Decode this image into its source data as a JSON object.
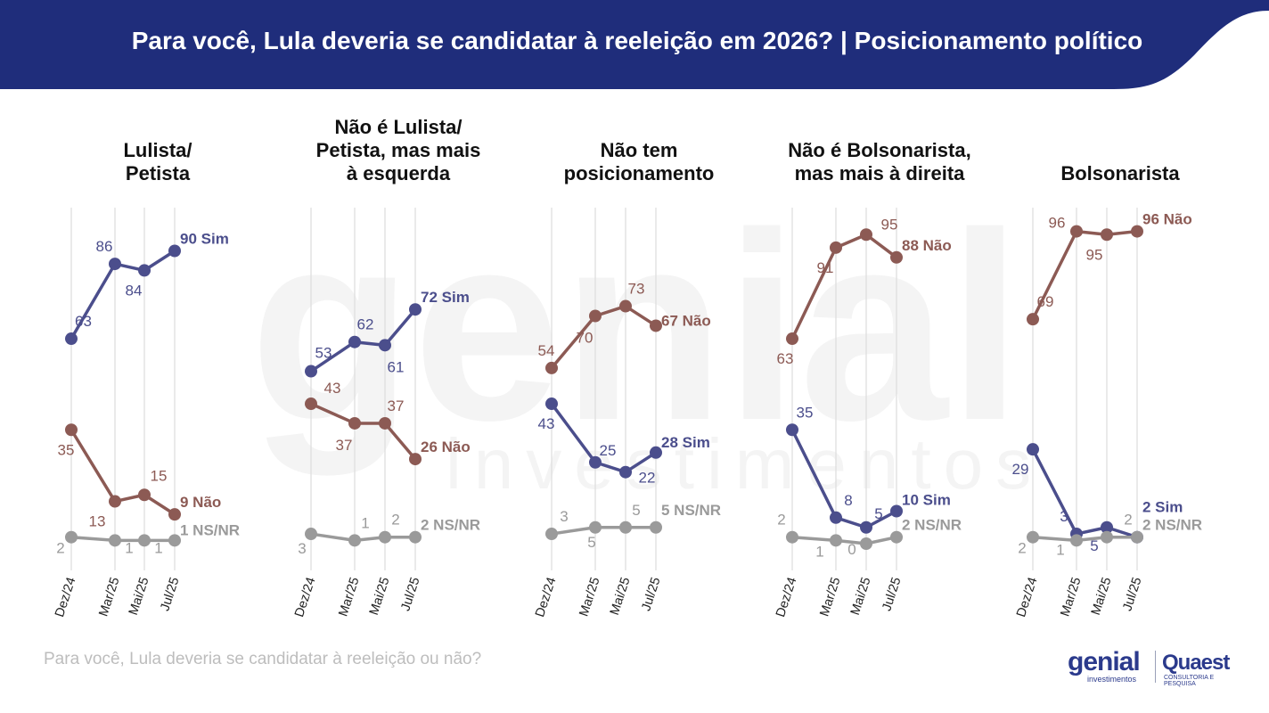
{
  "header": {
    "title": "Para você, Lula deveria se candidatar à reeleição em 2026? | Posicionamento político",
    "bg_color": "#1f2d7b"
  },
  "footnote": "Para você, Lula deveria se candidatar à reeleição ou não?",
  "logos": {
    "genial": "genial",
    "genial_sub": "investimentos",
    "quaest": "Quaest",
    "quaest_sub": "CONSULTORIA E PESQUISA"
  },
  "watermark": {
    "word": "genial",
    "sub": "investimentos"
  },
  "colors": {
    "sim": "#4b4e8c",
    "nao": "#8c5a54",
    "nsnr": "#9a9a9a",
    "grid": "#dedede"
  },
  "chart_data": {
    "type": "line",
    "periods": [
      "Dez/24",
      "Mar/25",
      "Mai/25",
      "Jul/25"
    ],
    "series_names": [
      "Sim",
      "Não",
      "NS/NR"
    ],
    "panels": [
      {
        "title": [
          "Lulista/",
          "Petista"
        ],
        "series": [
          {
            "name": "Sim",
            "values": [
              63,
              86,
              84,
              90
            ]
          },
          {
            "name": "Não",
            "values": [
              35,
              13,
              15,
              9
            ]
          },
          {
            "name": "NS/NR",
            "values": [
              2,
              1,
              1,
              1
            ]
          }
        ]
      },
      {
        "title": [
          "Não é Lulista/",
          "Petista, mas mais",
          "à esquerda"
        ],
        "series": [
          {
            "name": "Sim",
            "values": [
              53,
              62,
              61,
              72
            ]
          },
          {
            "name": "Não",
            "values": [
              43,
              37,
              37,
              26
            ]
          },
          {
            "name": "NS/NR",
            "values": [
              3,
              1,
              2,
              2
            ]
          }
        ]
      },
      {
        "title": [
          "Não tem",
          "posicionamento"
        ],
        "series": [
          {
            "name": "Sim",
            "values": [
              43,
              25,
              22,
              28
            ]
          },
          {
            "name": "Não",
            "values": [
              54,
              70,
              73,
              67
            ]
          },
          {
            "name": "NS/NR",
            "values": [
              3,
              5,
              5,
              5
            ]
          }
        ]
      },
      {
        "title": [
          "Não é Bolsonarista,",
          "mas mais à direita"
        ],
        "series": [
          {
            "name": "Sim",
            "values": [
              35,
              8,
              5,
              10
            ]
          },
          {
            "name": "Não",
            "values": [
              63,
              91,
              95,
              88
            ]
          },
          {
            "name": "NS/NR",
            "values": [
              2,
              1,
              0,
              2
            ]
          }
        ]
      },
      {
        "title": [
          "Bolsonarista"
        ],
        "series": [
          {
            "name": "Sim",
            "values": [
              29,
              3,
              5,
              2
            ]
          },
          {
            "name": "Não",
            "values": [
              69,
              96,
              95,
              96
            ]
          },
          {
            "name": "NS/NR",
            "values": [
              2,
              1,
              2,
              2
            ]
          }
        ]
      }
    ]
  }
}
